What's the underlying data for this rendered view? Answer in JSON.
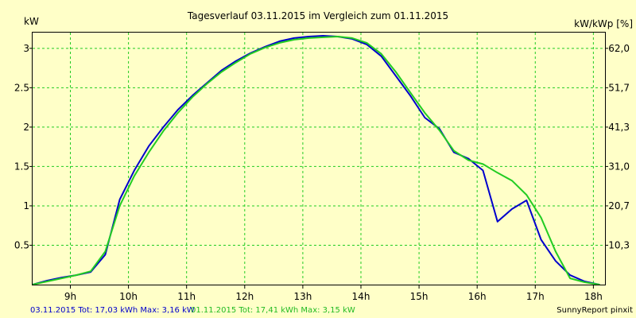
{
  "chart_data": {
    "type": "line",
    "title": "Tagesverlauf 03.11.2015 im Vergleich zum 01.11.2015",
    "y_unit_left": "kW",
    "y_unit_right": "kW/kWp [%]",
    "xlim": [
      8.35,
      18.2
    ],
    "ylim": [
      0,
      3.2
    ],
    "x_ticks": [
      {
        "value": 9,
        "label": "9h"
      },
      {
        "value": 10,
        "label": "10h"
      },
      {
        "value": 11,
        "label": "11h"
      },
      {
        "value": 12,
        "label": "12h"
      },
      {
        "value": 13,
        "label": "13h"
      },
      {
        "value": 14,
        "label": "14h"
      },
      {
        "value": 15,
        "label": "15h"
      },
      {
        "value": 16,
        "label": "16h"
      },
      {
        "value": 17,
        "label": "17h"
      },
      {
        "value": 18,
        "label": "18h"
      }
    ],
    "y_ticks_left": [
      {
        "value": 0.5,
        "label": "0.5"
      },
      {
        "value": 1,
        "label": "1"
      },
      {
        "value": 1.5,
        "label": "1.5"
      },
      {
        "value": 2,
        "label": "2"
      },
      {
        "value": 2.5,
        "label": "2.5"
      },
      {
        "value": 3,
        "label": "3"
      }
    ],
    "y_ticks_right": [
      {
        "value": 0.5,
        "label": "10,3"
      },
      {
        "value": 1,
        "label": "20,7"
      },
      {
        "value": 1.5,
        "label": "31,0"
      },
      {
        "value": 2,
        "label": "41,3"
      },
      {
        "value": 2.5,
        "label": "51,7"
      },
      {
        "value": 3,
        "label": "62,0"
      }
    ],
    "grid": true,
    "series": [
      {
        "name": "03.11.2015",
        "color": "#0000cc",
        "points": [
          [
            8.35,
            0.0
          ],
          [
            8.6,
            0.05
          ],
          [
            8.85,
            0.09
          ],
          [
            9.1,
            0.12
          ],
          [
            9.35,
            0.16
          ],
          [
            9.6,
            0.38
          ],
          [
            9.85,
            1.08
          ],
          [
            10.1,
            1.45
          ],
          [
            10.35,
            1.76
          ],
          [
            10.6,
            2.0
          ],
          [
            10.85,
            2.22
          ],
          [
            11.1,
            2.4
          ],
          [
            11.35,
            2.56
          ],
          [
            11.6,
            2.72
          ],
          [
            11.85,
            2.84
          ],
          [
            12.1,
            2.94
          ],
          [
            12.35,
            3.02
          ],
          [
            12.6,
            3.09
          ],
          [
            12.85,
            3.13
          ],
          [
            13.1,
            3.15
          ],
          [
            13.35,
            3.16
          ],
          [
            13.6,
            3.15
          ],
          [
            13.85,
            3.12
          ],
          [
            14.1,
            3.05
          ],
          [
            14.35,
            2.9
          ],
          [
            14.6,
            2.65
          ],
          [
            14.85,
            2.4
          ],
          [
            15.1,
            2.12
          ],
          [
            15.35,
            1.98
          ],
          [
            15.6,
            1.68
          ],
          [
            15.85,
            1.6
          ],
          [
            16.1,
            1.45
          ],
          [
            16.35,
            0.8
          ],
          [
            16.6,
            0.96
          ],
          [
            16.85,
            1.07
          ],
          [
            17.1,
            0.57
          ],
          [
            17.35,
            0.3
          ],
          [
            17.6,
            0.12
          ],
          [
            17.85,
            0.04
          ],
          [
            18.1,
            0.0
          ]
        ]
      },
      {
        "name": "01.11.2015",
        "color": "#22cc22",
        "points": [
          [
            8.35,
            0.0
          ],
          [
            8.6,
            0.04
          ],
          [
            8.85,
            0.08
          ],
          [
            9.1,
            0.12
          ],
          [
            9.35,
            0.17
          ],
          [
            9.6,
            0.42
          ],
          [
            9.85,
            1.0
          ],
          [
            10.1,
            1.38
          ],
          [
            10.35,
            1.68
          ],
          [
            10.6,
            1.95
          ],
          [
            10.85,
            2.18
          ],
          [
            11.1,
            2.38
          ],
          [
            11.35,
            2.55
          ],
          [
            11.6,
            2.7
          ],
          [
            11.85,
            2.82
          ],
          [
            12.1,
            2.93
          ],
          [
            12.35,
            3.01
          ],
          [
            12.6,
            3.07
          ],
          [
            12.85,
            3.11
          ],
          [
            13.1,
            3.13
          ],
          [
            13.35,
            3.14
          ],
          [
            13.6,
            3.15
          ],
          [
            13.85,
            3.13
          ],
          [
            14.1,
            3.07
          ],
          [
            14.35,
            2.93
          ],
          [
            14.6,
            2.7
          ],
          [
            14.85,
            2.44
          ],
          [
            15.1,
            2.18
          ],
          [
            15.35,
            1.96
          ],
          [
            15.6,
            1.7
          ],
          [
            15.85,
            1.58
          ],
          [
            16.1,
            1.53
          ],
          [
            16.35,
            1.42
          ],
          [
            16.6,
            1.32
          ],
          [
            16.85,
            1.14
          ],
          [
            17.1,
            0.85
          ],
          [
            17.35,
            0.42
          ],
          [
            17.6,
            0.08
          ],
          [
            17.85,
            0.03
          ],
          [
            18.1,
            0.0
          ]
        ]
      }
    ],
    "footer": {
      "series1_text": "03.11.2015 Tot: 17,03 kWh Max: 3,16 kW",
      "series2_text": "01.11.2015 Tot: 17,41 kWh Max: 3,15 kW",
      "credit": "SunnyReport pinxit"
    }
  }
}
